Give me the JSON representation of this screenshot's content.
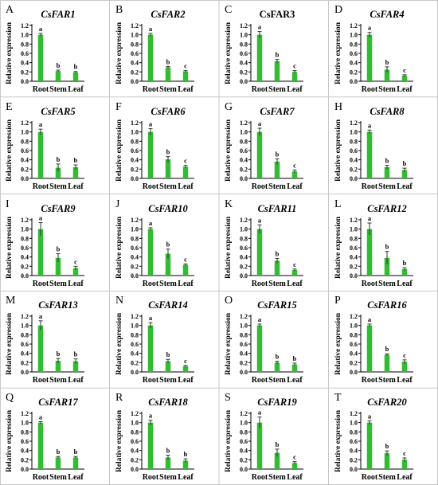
{
  "figure": {
    "ylabel": "Relative expression",
    "categories": [
      "Root",
      "Stem",
      "Leaf"
    ],
    "yticks": [
      "0.0",
      "0.2",
      "0.4",
      "0.6",
      "0.8",
      "1.0",
      "1.2"
    ],
    "bar_color": "#33bb33",
    "error_color": "#333333"
  },
  "chart_data": [
    {
      "panel": "A",
      "title": "CsFAR1",
      "type": "bar",
      "categories": [
        "Root",
        "Stem",
        "Leaf"
      ],
      "values": [
        1.0,
        0.22,
        0.19
      ],
      "errors": [
        0.03,
        0.02,
        0.02
      ],
      "labels": [
        "a",
        "b",
        "b"
      ],
      "ylim": [
        0,
        1.2
      ],
      "ylabel": "Relative expression"
    },
    {
      "panel": "B",
      "title": "CsFAR2",
      "type": "bar",
      "categories": [
        "Root",
        "Stem",
        "Leaf"
      ],
      "values": [
        1.0,
        0.3,
        0.21
      ],
      "errors": [
        0.03,
        0.02,
        0.02
      ],
      "labels": [
        "a",
        "b",
        "c"
      ],
      "ylim": [
        0,
        1.2
      ],
      "ylabel": "Relative expression"
    },
    {
      "panel": "C",
      "title": "CsFAR3",
      "type": "bar",
      "categories": [
        "Root",
        "Stem",
        "Leaf"
      ],
      "values": [
        1.0,
        0.43,
        0.2
      ],
      "errors": [
        0.07,
        0.04,
        0.03
      ],
      "labels": [
        "a",
        "b",
        "c"
      ],
      "ylim": [
        0,
        1.2
      ],
      "ylabel": "Relative expression"
    },
    {
      "panel": "D",
      "title": "CsFAR4",
      "type": "bar",
      "categories": [
        "Root",
        "Stem",
        "Leaf"
      ],
      "values": [
        1.0,
        0.25,
        0.12
      ],
      "errors": [
        0.05,
        0.06,
        0.02
      ],
      "labels": [
        "a",
        "b",
        "c"
      ],
      "ylim": [
        0,
        1.2
      ],
      "ylabel": "Relative expression"
    },
    {
      "panel": "E",
      "title": "CsFAR5",
      "type": "bar",
      "categories": [
        "Root",
        "Stem",
        "Leaf"
      ],
      "values": [
        1.0,
        0.23,
        0.24
      ],
      "errors": [
        0.06,
        0.08,
        0.05
      ],
      "labels": [
        "a",
        "b",
        "b"
      ],
      "ylim": [
        0,
        1.2
      ],
      "ylabel": "Relative expression"
    },
    {
      "panel": "F",
      "title": "CsFAR6",
      "type": "bar",
      "categories": [
        "Root",
        "Stem",
        "Leaf"
      ],
      "values": [
        1.0,
        0.41,
        0.25
      ],
      "errors": [
        0.07,
        0.06,
        0.03
      ],
      "labels": [
        "a",
        "b",
        "c"
      ],
      "ylim": [
        0,
        1.2
      ],
      "ylabel": "Relative expression"
    },
    {
      "panel": "G",
      "title": "CsFAR7",
      "type": "bar",
      "categories": [
        "Root",
        "Stem",
        "Leaf"
      ],
      "values": [
        1.0,
        0.36,
        0.15
      ],
      "errors": [
        0.08,
        0.06,
        0.03
      ],
      "labels": [
        "a",
        "b",
        "c"
      ],
      "ylim": [
        0,
        1.2
      ],
      "ylabel": "Relative expression"
    },
    {
      "panel": "H",
      "title": "CsFAR8",
      "type": "bar",
      "categories": [
        "Root",
        "Stem",
        "Leaf"
      ],
      "values": [
        1.0,
        0.24,
        0.18
      ],
      "errors": [
        0.04,
        0.04,
        0.04
      ],
      "labels": [
        "a",
        "b",
        "b"
      ],
      "ylim": [
        0,
        1.2
      ],
      "ylabel": "Relative expression"
    },
    {
      "panel": "I",
      "title": "CsFAR9",
      "type": "bar",
      "categories": [
        "Root",
        "Stem",
        "Leaf"
      ],
      "values": [
        1.0,
        0.38,
        0.16
      ],
      "errors": [
        0.14,
        0.09,
        0.04
      ],
      "labels": [
        "a",
        "b",
        "c"
      ],
      "ylim": [
        0,
        1.2
      ],
      "ylabel": "Relative expression"
    },
    {
      "panel": "J",
      "title": "CsFAR10",
      "type": "bar",
      "categories": [
        "Root",
        "Stem",
        "Leaf"
      ],
      "values": [
        1.0,
        0.47,
        0.23
      ],
      "errors": [
        0.03,
        0.1,
        0.02
      ],
      "labels": [
        "a",
        "b",
        "c"
      ],
      "ylim": [
        0,
        1.2
      ],
      "ylabel": "Relative expression"
    },
    {
      "panel": "K",
      "title": "CsFAR11",
      "type": "bar",
      "categories": [
        "Root",
        "Stem",
        "Leaf"
      ],
      "values": [
        1.0,
        0.32,
        0.12
      ],
      "errors": [
        0.09,
        0.05,
        0.02
      ],
      "labels": [
        "a",
        "b",
        "c"
      ],
      "ylim": [
        0,
        1.2
      ],
      "ylabel": "Relative expression"
    },
    {
      "panel": "L",
      "title": "CsFAR12",
      "type": "bar",
      "categories": [
        "Root",
        "Stem",
        "Leaf"
      ],
      "values": [
        1.0,
        0.38,
        0.14
      ],
      "errors": [
        0.13,
        0.14,
        0.03
      ],
      "labels": [
        "a",
        "b",
        "b"
      ],
      "ylim": [
        0,
        1.2
      ],
      "ylabel": "Relative expression"
    },
    {
      "panel": "M",
      "title": "CsFAR13",
      "type": "bar",
      "categories": [
        "Root",
        "Stem",
        "Leaf"
      ],
      "values": [
        1.0,
        0.24,
        0.23
      ],
      "errors": [
        0.1,
        0.05,
        0.05
      ],
      "labels": [
        "a",
        "b",
        "b"
      ],
      "ylim": [
        0,
        1.2
      ],
      "ylabel": "Relative expression"
    },
    {
      "panel": "N",
      "title": "CsFAR14",
      "type": "bar",
      "categories": [
        "Root",
        "Stem",
        "Leaf"
      ],
      "values": [
        1.0,
        0.23,
        0.12
      ],
      "errors": [
        0.06,
        0.04,
        0.02
      ],
      "labels": [
        "a",
        "b",
        "c"
      ],
      "ylim": [
        0,
        1.2
      ],
      "ylabel": "Relative expression"
    },
    {
      "panel": "O",
      "title": "CsFAR15",
      "type": "bar",
      "categories": [
        "Root",
        "Stem",
        "Leaf"
      ],
      "values": [
        1.0,
        0.2,
        0.16
      ],
      "errors": [
        0.03,
        0.03,
        0.03
      ],
      "labels": [
        "a",
        "b",
        "b"
      ],
      "ylim": [
        0,
        1.2
      ],
      "ylabel": "Relative expression"
    },
    {
      "panel": "P",
      "title": "CsFAR16",
      "type": "bar",
      "categories": [
        "Root",
        "Stem",
        "Leaf"
      ],
      "values": [
        1.0,
        0.37,
        0.22
      ],
      "errors": [
        0.03,
        0.02,
        0.04
      ],
      "labels": [
        "a",
        "b",
        "c"
      ],
      "ylim": [
        0,
        1.2
      ],
      "ylabel": "Relative expression"
    },
    {
      "panel": "Q",
      "title": "CsFAR17",
      "type": "bar",
      "categories": [
        "Root",
        "Stem",
        "Leaf"
      ],
      "values": [
        1.0,
        0.25,
        0.25
      ],
      "errors": [
        0.02,
        0.02,
        0.02
      ],
      "labels": [
        "a",
        "b",
        "b"
      ],
      "ylim": [
        0,
        1.2
      ],
      "ylabel": "Relative expression"
    },
    {
      "panel": "R",
      "title": "CsFAR18",
      "type": "bar",
      "categories": [
        "Root",
        "Stem",
        "Leaf"
      ],
      "values": [
        1.0,
        0.25,
        0.18
      ],
      "errors": [
        0.05,
        0.05,
        0.04
      ],
      "labels": [
        "a",
        "b",
        "b"
      ],
      "ylim": [
        0,
        1.2
      ],
      "ylabel": "Relative expression"
    },
    {
      "panel": "S",
      "title": "CsFAR19",
      "type": "bar",
      "categories": [
        "Root",
        "Stem",
        "Leaf"
      ],
      "values": [
        1.0,
        0.35,
        0.13
      ],
      "errors": [
        0.12,
        0.08,
        0.03
      ],
      "labels": [
        "a",
        "b",
        "c"
      ],
      "ylim": [
        0,
        1.2
      ],
      "ylabel": "Relative expression"
    },
    {
      "panel": "T",
      "title": "CsFAR20",
      "type": "bar",
      "categories": [
        "Root",
        "Stem",
        "Leaf"
      ],
      "values": [
        1.0,
        0.34,
        0.2
      ],
      "errors": [
        0.04,
        0.05,
        0.04
      ],
      "labels": [
        "a",
        "b",
        "c"
      ],
      "ylim": [
        0,
        1.2
      ],
      "ylabel": "Relative expression"
    }
  ]
}
